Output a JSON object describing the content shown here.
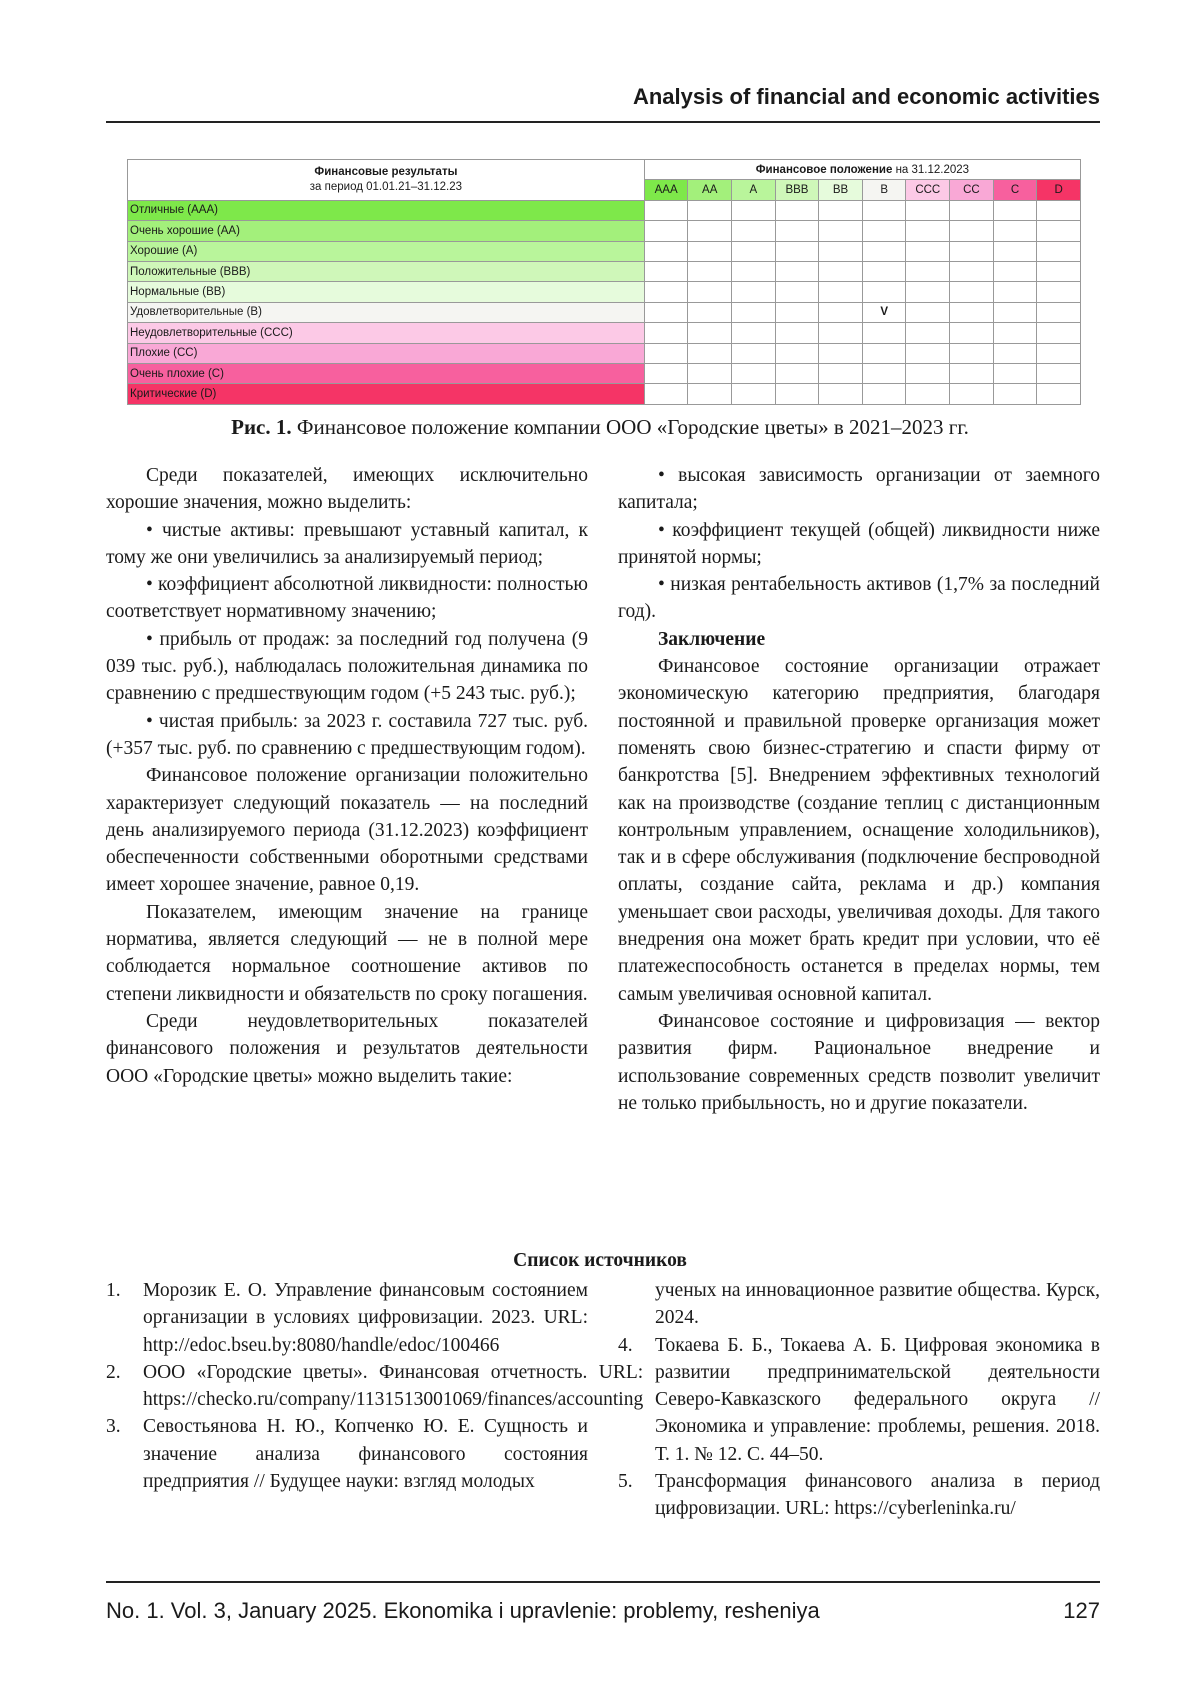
{
  "header": {
    "running_title": "Analysis of financial and economic activities"
  },
  "figure": {
    "left_title": "Финансовые результаты",
    "left_subtitle": "за период 01.01.21–31.12.23",
    "right_title_bold": "Финансовое положение",
    "right_title_rest": " на 31.12.2023",
    "grades": [
      {
        "label": "AAA",
        "color": "#7ee84a"
      },
      {
        "label": "AA",
        "color": "#a3f07b"
      },
      {
        "label": "A",
        "color": "#b9f59b"
      },
      {
        "label": "BBB",
        "color": "#cff7b9"
      },
      {
        "label": "BB",
        "color": "#e6fbdc"
      },
      {
        "label": "B",
        "color": "#f5f5f2"
      },
      {
        "label": "CCC",
        "color": "#fcc9e6"
      },
      {
        "label": "CC",
        "color": "#f9a8d6"
      },
      {
        "label": "C",
        "color": "#f7609e"
      },
      {
        "label": "D",
        "color": "#f53466"
      }
    ],
    "rows": [
      "Отличные (AAA)",
      "Очень хорошие (AA)",
      "Хорошие (A)",
      "Положительные (BBB)",
      "Нормальные (ВВ)",
      "Удовлетворительные (B)",
      "Неудовлетворительные (CCC)",
      "Плохие (CC)",
      "Очень плохие (C)",
      "Критические (D)"
    ],
    "mark": {
      "row": 5,
      "col": 5,
      "symbol": "V"
    },
    "caption_label": "Рис. 1.",
    "caption_text": " Финансовое положение компании ООО «Городские цветы» в 2021–2023 гг."
  },
  "left_column": [
    {
      "type": "p",
      "text": "Среди показателей, имеющих исключительно хорошие значения, можно выделить:"
    },
    {
      "type": "b",
      "text": "•   чистые активы: превышают уставный капитал, к тому же они увеличились за анализируемый период;"
    },
    {
      "type": "b",
      "text": "•   коэффициент абсолютной ликвидности: полностью соответствует нормативному значению;"
    },
    {
      "type": "b",
      "text": "•   прибыль от продаж: за последний год получена (9 039 тыс. руб.), наблюдалась положительная динамика по сравнению с предшествующим годом (+5 243 тыс. руб.);"
    },
    {
      "type": "b",
      "text": "•   чистая прибыль: за 2023 г. составила 727 тыс. руб. (+357 тыс. руб. по сравнению с предшествующим годом)."
    },
    {
      "type": "p",
      "text": "Финансовое положение организации положительно характеризует следующий показатель — на последний день анализируемого периода (31.12.2023) коэффициент обеспеченности собственными оборотными средствами имеет хорошее значение, равное 0,19."
    },
    {
      "type": "p",
      "text": "Показателем, имеющим значение на границе норматива, является следующий — не в полной мере соблюдается нормальное соотношение активов по степени ликвидности и обязательств по сроку погашения."
    },
    {
      "type": "p",
      "text": "Среди неудовлетворительных показателей финансового положения и результатов деятельности ООО «Городские цветы» можно выделить такие:"
    }
  ],
  "right_column": [
    {
      "type": "b",
      "text": "•   высокая зависимость организации от заемного капитала;"
    },
    {
      "type": "b",
      "text": "•   коэффициент текущей (общей) ликвидности ниже принятой нормы;"
    },
    {
      "type": "b",
      "text": "•   низкая рентабельность активов (1,7% за последний год)."
    },
    {
      "type": "h",
      "text": "Заключение"
    },
    {
      "type": "p",
      "text": "Финансовое состояние организации отражает экономическую категорию предприятия, благодаря постоянной и правильной проверке организация может поменять свою бизнес-стратегию и спасти фирму от банкротства [5]. Внедрением эффективных технологий как на производстве (создание теплиц с дистанционным контрольным управлением, оснащение холодильников), так и в сфере обслуживания (подключение беспроводной оплаты, создание сайта, реклама и др.) компания уменьшает свои расходы, увеличивая доходы. Для такого внедрения она может брать кредит при условии, что её платежеспособность останется в пределах нормы, тем самым увеличивая основной капитал."
    },
    {
      "type": "p",
      "text": "Финансовое состояние и цифровизация — вектор развития фирм. Рациональное внедрение и использование современных средств позволит увеличит не только прибыльность, но и другие показатели."
    }
  ],
  "references": {
    "title": "Список источников",
    "left": [
      {
        "n": "1.",
        "text": "Морозик Е. О. Управление финансовым состоянием организации в условиях цифровизации. 2023. URL: http://edoc.bseu.by:8080/handle/edoc/100466"
      },
      {
        "n": "2.",
        "text": "ООО «Городские цветы». Финансовая отчетность. URL: https://checko.ru/company/1131513001069/finances/accounting"
      },
      {
        "n": "3.",
        "text": "Севостьянова Н. Ю., Копченко Ю. Е. Сущность и значение анализа финансового состояния предприятия // Будущее науки: взгляд молодых"
      }
    ],
    "right": [
      {
        "n": "",
        "text": "ученых на инновационное развитие общества. Курск, 2024."
      },
      {
        "n": "4.",
        "text": "Токаева Б. Б., Токаева А. Б. Цифровая экономика в развитии предпринимательской деятельности Северо-Кавказского федерального округа // Экономика и управление: проблемы, решения. 2018. Т. 1. № 12. С. 44–50."
      },
      {
        "n": "5.",
        "text": "Трансформация финансового анализа в период цифровизации. URL: https://cyberleninka.ru/"
      }
    ]
  },
  "footer": {
    "journal": "No. 1. Vol. 3, January 2025. Ekonomika i upravlenie: problemy, resheniya",
    "page": "127"
  }
}
